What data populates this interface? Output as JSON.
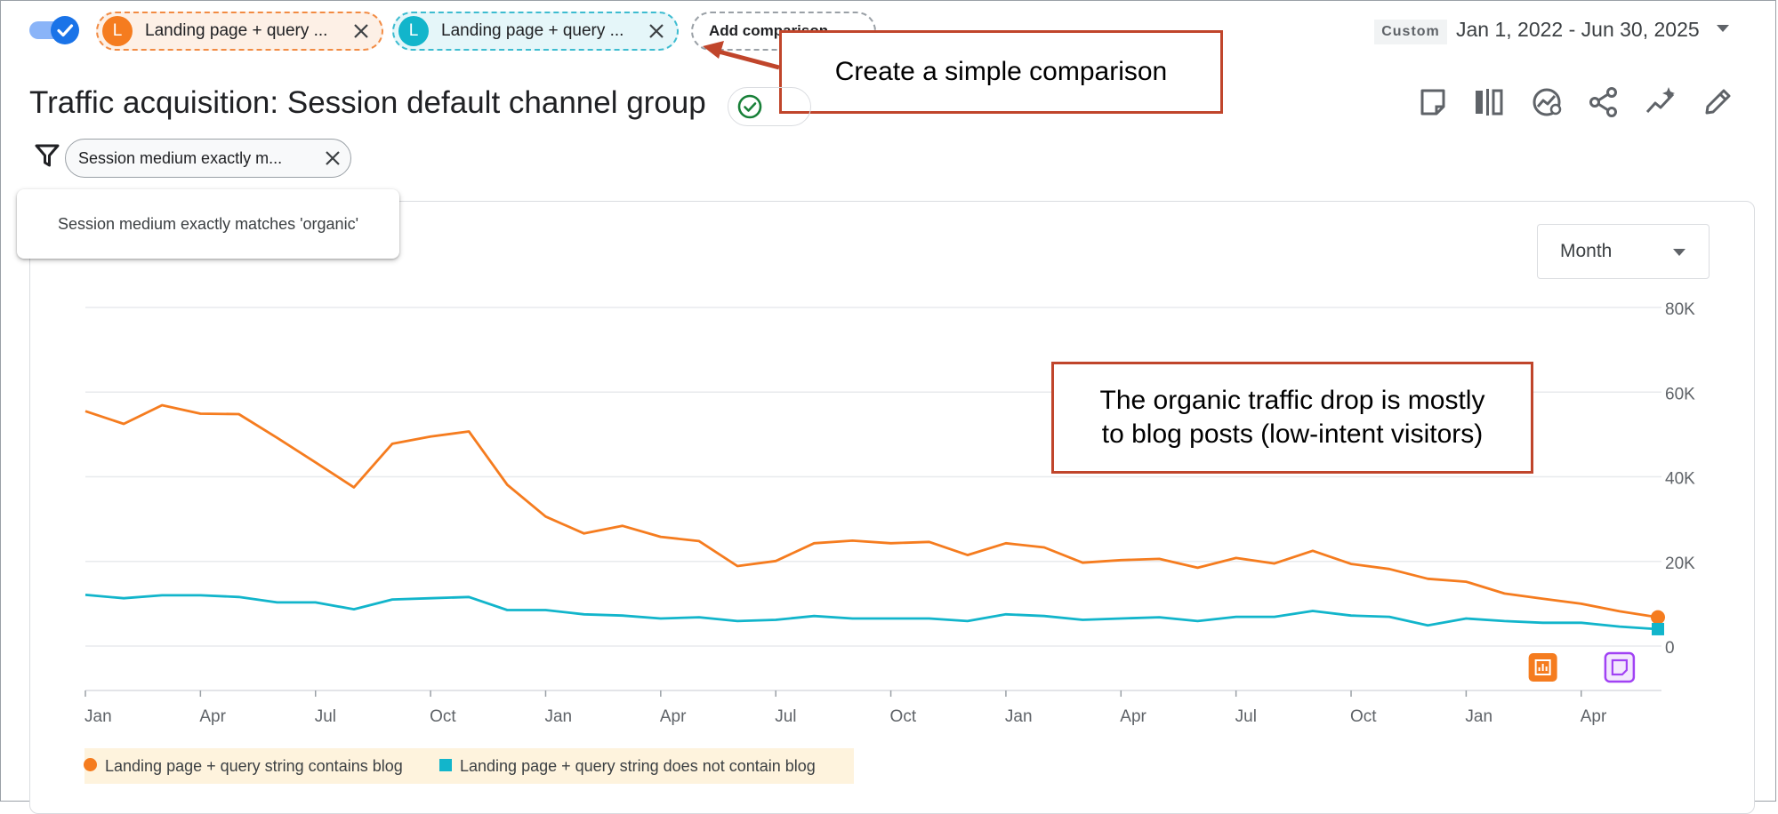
{
  "header": {
    "toggle_checked": true,
    "comparisons": [
      {
        "initial": "L",
        "label": "Landing page + query ...",
        "color": "#f57c1f"
      },
      {
        "initial": "L",
        "label": "Landing page + query ...",
        "color": "#12b5cb"
      }
    ],
    "add_comparison_label": "Add comparison",
    "date_mode": "Custom",
    "date_range": "Jan 1, 2022 - Jun 30, 2025"
  },
  "callouts": {
    "comparison_note": "Create a simple comparison",
    "drop_note_line1": "The organic traffic drop is mostly",
    "drop_note_line2": "to blog posts (low-intent visitors)"
  },
  "report": {
    "title": "Traffic acquisition: Session default channel group",
    "status_icon": "check-circle-icon",
    "toolbar_icons": [
      "note-icon",
      "compare-columns-icon",
      "insights-icon",
      "share-icon",
      "sparkle-icon",
      "edit-icon"
    ]
  },
  "filter": {
    "chip_label": "Session medium exactly m...",
    "tooltip": "Session medium exactly matches 'organic'"
  },
  "granularity": {
    "selected": "Month"
  },
  "chart_data": {
    "type": "line",
    "x": [
      "2022-01",
      "2022-02",
      "2022-03",
      "2022-04",
      "2022-05",
      "2022-06",
      "2022-07",
      "2022-08",
      "2022-09",
      "2022-10",
      "2022-11",
      "2022-12",
      "2023-01",
      "2023-02",
      "2023-03",
      "2023-04",
      "2023-05",
      "2023-06",
      "2023-07",
      "2023-08",
      "2023-09",
      "2023-10",
      "2023-11",
      "2023-12",
      "2024-01",
      "2024-02",
      "2024-03",
      "2024-04",
      "2024-05",
      "2024-06",
      "2024-07",
      "2024-08",
      "2024-09",
      "2024-10",
      "2024-11",
      "2024-12",
      "2025-01",
      "2025-02",
      "2025-03",
      "2025-04",
      "2025-05",
      "2025-06"
    ],
    "x_tick_labels": [
      "Jan",
      "Apr",
      "Jul",
      "Oct",
      "Jan",
      "Apr",
      "Jul",
      "Oct",
      "Jan",
      "Apr",
      "Jul",
      "Oct",
      "Jan",
      "Apr"
    ],
    "x_tick_months": [
      "2022-01",
      "2022-04",
      "2022-07",
      "2022-10",
      "2023-01",
      "2023-04",
      "2023-07",
      "2023-10",
      "2024-01",
      "2024-04",
      "2024-07",
      "2024-10",
      "2025-01",
      "2025-04"
    ],
    "series": [
      {
        "name": "Landing page + query string contains blog",
        "color": "#f57c1f",
        "marker": "circle",
        "values": [
          55500,
          52500,
          56900,
          54900,
          54800,
          49200,
          43400,
          37500,
          47800,
          49500,
          50700,
          38100,
          30600,
          26600,
          28400,
          25800,
          24800,
          18900,
          20100,
          24300,
          24900,
          24300,
          24600,
          21500,
          24300,
          23300,
          19700,
          20300,
          20600,
          18500,
          20800,
          19500,
          22500,
          19400,
          18200,
          15900,
          15200,
          12400,
          11200,
          10000,
          8200,
          6800
        ]
      },
      {
        "name": "Landing page + query string does not contain blog",
        "color": "#12b5cb",
        "marker": "square",
        "values": [
          12100,
          11300,
          12000,
          12000,
          11600,
          10300,
          10300,
          8700,
          11000,
          11300,
          11600,
          8500,
          8500,
          7500,
          7200,
          6500,
          6800,
          5900,
          6200,
          7100,
          6500,
          6500,
          6500,
          5900,
          7500,
          7100,
          6200,
          6500,
          6800,
          5900,
          6900,
          6900,
          8300,
          7200,
          6900,
          4900,
          6500,
          5900,
          5500,
          5500,
          4600,
          4000
        ]
      }
    ],
    "y_ticks": [
      0,
      20000,
      40000,
      60000,
      80000
    ],
    "y_tick_labels": [
      "0",
      "20K",
      "40K",
      "60K",
      "80K"
    ],
    "ylim": [
      0,
      80000
    ],
    "grid": true,
    "y_axis_side": "right",
    "annotation_icons": [
      {
        "month": "2025-03",
        "icon": "report-chart-icon",
        "color": "#f57c1f"
      },
      {
        "month": "2025-05",
        "icon": "note-icon",
        "color": "#a142f4"
      }
    ]
  }
}
